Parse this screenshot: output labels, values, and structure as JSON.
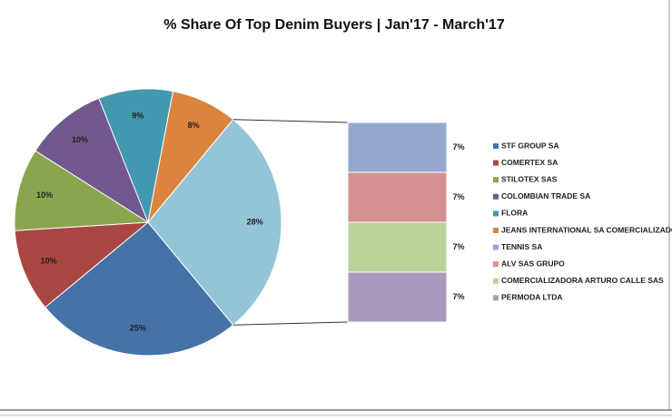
{
  "chart_data": {
    "type": "bar-of-pie",
    "title": "% Share Of Top Denim Buyers | Jan'17 - March'17",
    "pie": {
      "categories": [
        "STF GROUP SA",
        "COMERTEX SA",
        "STILOTEX SAS",
        "COLOMBIAN TRADE SA",
        "FLORA",
        "JEANS INTERNATIONAL SA COMERCIALIZADO",
        null
      ],
      "values": [
        25,
        10,
        10,
        10,
        9,
        8,
        28
      ],
      "value_labels": [
        "25%",
        "10%",
        "10%",
        "10%",
        "9%",
        "8%",
        "28%"
      ],
      "colors": [
        "#4572a7",
        "#aa4643",
        "#89a54e",
        "#71588f",
        "#4198af",
        "#db843d",
        "#93c5d6"
      ]
    },
    "bar": {
      "categories": [
        "TENNIS SA",
        "ALV SAS GRUPO",
        "COMERCIALIZADORA ARTURO CALLE SAS",
        "PERMODA LTDA"
      ],
      "values": [
        7,
        7,
        7,
        7
      ],
      "value_labels": [
        "7%",
        "7%",
        "7%",
        "7%"
      ],
      "colors": [
        "#95a9d0",
        "#d59290",
        "#bad19a",
        "#a99bbd"
      ]
    }
  }
}
